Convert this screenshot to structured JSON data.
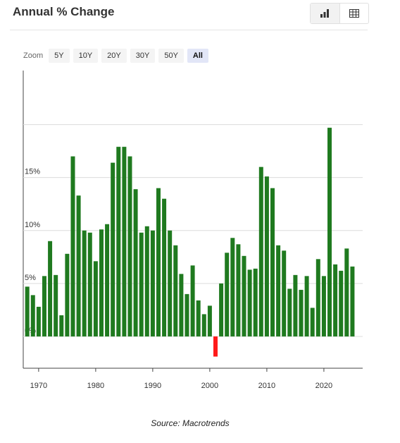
{
  "chart_data": {
    "type": "bar",
    "title": "Annual % Change",
    "x": [
      1968,
      1969,
      1970,
      1971,
      1972,
      1973,
      1974,
      1975,
      1976,
      1977,
      1978,
      1979,
      1980,
      1981,
      1982,
      1983,
      1984,
      1985,
      1986,
      1987,
      1988,
      1989,
      1990,
      1991,
      1992,
      1993,
      1994,
      1995,
      1996,
      1997,
      1998,
      1999,
      2000,
      2001,
      2002,
      2003,
      2004,
      2005,
      2006,
      2007,
      2008,
      2009,
      2010,
      2011,
      2012,
      2013,
      2014,
      2015,
      2016,
      2017,
      2018,
      2019,
      2020,
      2021,
      2022,
      2023,
      2024,
      2025
    ],
    "values": [
      4.7,
      3.9,
      2.8,
      5.7,
      9.0,
      5.8,
      2.0,
      7.8,
      17.0,
      13.3,
      10.0,
      9.8,
      7.1,
      10.1,
      10.6,
      16.4,
      17.9,
      17.9,
      17.0,
      13.9,
      9.8,
      10.4,
      10.0,
      14.0,
      13.0,
      10.0,
      8.6,
      5.9,
      4.0,
      6.7,
      3.4,
      2.1,
      2.9,
      -1.9,
      5.0,
      7.9,
      9.3,
      8.7,
      7.6,
      6.3,
      6.4,
      16.0,
      15.1,
      14.0,
      8.6,
      8.1,
      4.5,
      5.8,
      4.4,
      5.7,
      2.7,
      7.3,
      5.7,
      19.7,
      6.8,
      6.2,
      8.3,
      6.6
    ],
    "color": "#1f7a1f",
    "negative_color": "#ff1a1a",
    "xlim": [
      1967.3,
      2026.8
    ],
    "xticks": [
      1970,
      1980,
      1990,
      2000,
      2010,
      2020
    ],
    "ylim": [
      -3,
      25.1
    ],
    "yticks": [
      {
        "value": 0,
        "label": "0%"
      },
      {
        "value": 5,
        "label": "5%"
      },
      {
        "value": 10,
        "label": "10%"
      },
      {
        "value": 15,
        "label": "15%"
      },
      {
        "value": 20,
        "label": null
      }
    ],
    "grid": true,
    "source": "Source: Macrotrends"
  },
  "controls": {
    "zoom_label": "Zoom",
    "zoom_options": [
      "5Y",
      "10Y",
      "20Y",
      "30Y",
      "50Y",
      "All"
    ],
    "selected": 5
  }
}
